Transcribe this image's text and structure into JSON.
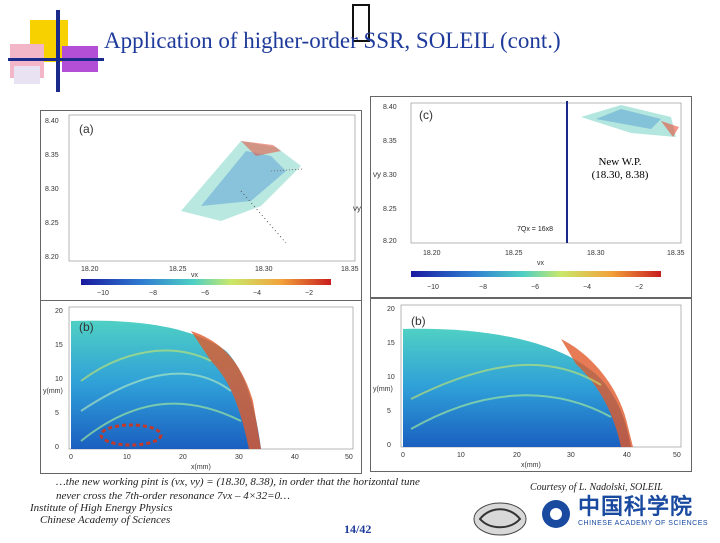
{
  "slide": {
    "title": "Application of higher-order SSR, SOLEIL (cont.)",
    "page_number": "14/42",
    "footnote_line1": "…the new working pint is (νx, νy) = (18.30, 8.38), in order that the horizontal tune",
    "footnote_line2": "never cross the 7th-order resonance 7νx – 4×32=0…",
    "courtesy_prefix": "Courtesy of ",
    "courtesy_name": "L. Nadolski, SOLEIL",
    "institute_line1": "Institute of High Energy Physics",
    "institute_line2": "Chinese Academy of Sciences",
    "logo_text_cn": "中国科学院",
    "logo_text_en": "CHINESE ACADEMY OF SCIENCES"
  },
  "panels": {
    "a": {
      "label": "(a)",
      "y_ticks": [
        "8.40",
        "8.35",
        "8.30",
        "8.25",
        "8.20"
      ],
      "x_ticks": [
        "18.20",
        "18.25",
        "18.30",
        "18.35"
      ],
      "x_axis": "νx",
      "y_axis": "νy",
      "colorbar_ticks": [
        "−10",
        "−8",
        "−6",
        "−4",
        "−2"
      ]
    },
    "c": {
      "label": "(c)",
      "y_ticks": [
        "8.40",
        "8.35",
        "8.30",
        "8.25",
        "8.20"
      ],
      "x_ticks": [
        "18.20",
        "18.25",
        "18.30",
        "18.35"
      ],
      "x_axis": "νx",
      "y_axis": "νy",
      "resonance_label": "7Qx = 16x8",
      "wp_line1": "New W.P.",
      "wp_line2": "(18.30, 8.38)",
      "colorbar_ticks": [
        "−10",
        "−8",
        "−6",
        "−4",
        "−2"
      ]
    },
    "b": {
      "label": "(b)",
      "y_ticks": [
        "20",
        "15",
        "10",
        "5",
        "0"
      ],
      "x_ticks": [
        "0",
        "10",
        "20",
        "30",
        "40",
        "50"
      ],
      "x_axis": "x(mm)",
      "y_axis": "y(mm)"
    },
    "d": {
      "label": "(b)",
      "y_ticks": [
        "20",
        "15",
        "10",
        "5",
        "0"
      ],
      "x_ticks": [
        "0",
        "10",
        "20",
        "30",
        "40",
        "50"
      ],
      "x_axis": "x(mm)",
      "y_axis": "y(mm)"
    }
  },
  "colors": {
    "title": "#1e3a9a",
    "marker_line": "#1a2a8a",
    "highlight_circle": "#c0392b"
  }
}
